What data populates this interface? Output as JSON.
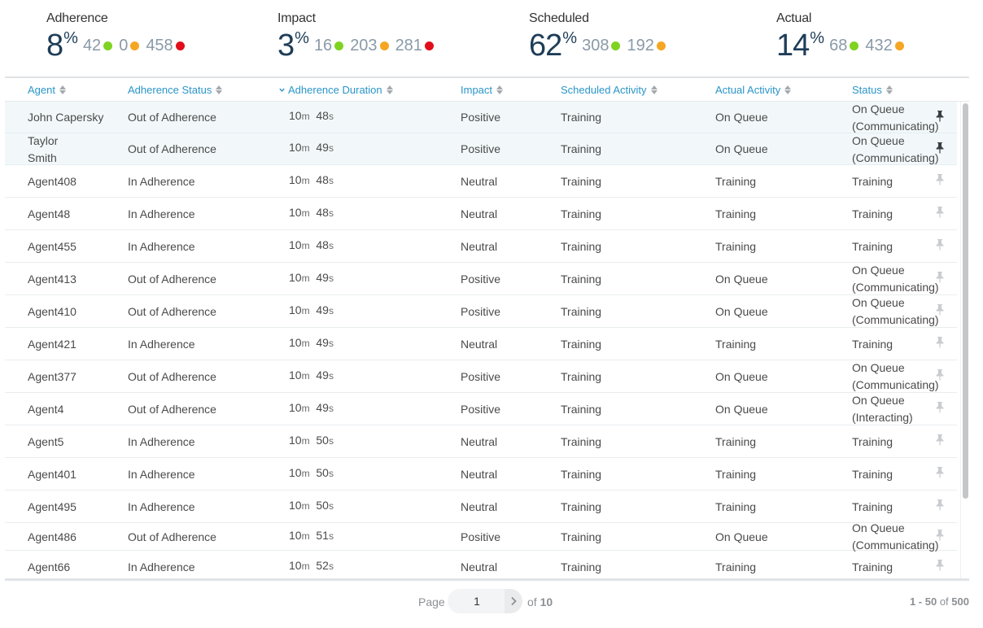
{
  "colors": {
    "green": "#7ed321",
    "orange": "#f5a623",
    "red": "#e10d1a",
    "header_link": "#2b95c8",
    "metric_pct": "#1e3d57"
  },
  "metrics": [
    {
      "title": "Adherence",
      "pct": "8",
      "pct_sign": "%",
      "counts": [
        {
          "value": "42",
          "color": "green"
        },
        {
          "value": "0",
          "color": "orange"
        },
        {
          "value": "458",
          "color": "red"
        }
      ]
    },
    {
      "title": "Impact",
      "pct": "3",
      "pct_sign": "%",
      "counts": [
        {
          "value": "16",
          "color": "green"
        },
        {
          "value": "203",
          "color": "orange"
        },
        {
          "value": "281",
          "color": "red"
        }
      ]
    },
    {
      "title": "Scheduled",
      "pct": "62",
      "pct_sign": "%",
      "counts": [
        {
          "value": "308",
          "color": "green"
        },
        {
          "value": "192",
          "color": "orange"
        }
      ]
    },
    {
      "title": "Actual",
      "pct": "14",
      "pct_sign": "%",
      "counts": [
        {
          "value": "68",
          "color": "green"
        },
        {
          "value": "432",
          "color": "orange"
        }
      ]
    }
  ],
  "table": {
    "columns": [
      {
        "key": "agent",
        "label": "Agent"
      },
      {
        "key": "adherence_status",
        "label": "Adherence Status"
      },
      {
        "key": "adherence_duration",
        "label": "Adherence Duration",
        "sorted": "desc"
      },
      {
        "key": "impact",
        "label": "Impact"
      },
      {
        "key": "scheduled_activity",
        "label": "Scheduled Activity"
      },
      {
        "key": "actual_activity",
        "label": "Actual Activity"
      },
      {
        "key": "status",
        "label": "Status"
      }
    ],
    "duration_units": {
      "minutes": "m",
      "seconds": "s"
    },
    "rows": [
      {
        "pinned": true,
        "agent": [
          "John Capersky"
        ],
        "adherence_status": "Out of Adherence",
        "min": "10",
        "sec": "48",
        "impact": "Positive",
        "scheduled": "Training",
        "actual": "On Queue",
        "status": [
          "On Queue",
          "(Communicating)"
        ]
      },
      {
        "pinned": true,
        "agent": [
          "Taylor",
          "Smith"
        ],
        "adherence_status": "Out of Adherence",
        "min": "10",
        "sec": "49",
        "impact": "Positive",
        "scheduled": "Training",
        "actual": "On Queue",
        "status": [
          "On Queue",
          "(Communicating)"
        ]
      },
      {
        "pinned": false,
        "agent": [
          "Agent408"
        ],
        "adherence_status": "In Adherence",
        "min": "10",
        "sec": "48",
        "impact": "Neutral",
        "scheduled": "Training",
        "actual": "Training",
        "status": [
          "Training"
        ]
      },
      {
        "pinned": false,
        "agent": [
          "Agent48"
        ],
        "adherence_status": "In Adherence",
        "min": "10",
        "sec": "48",
        "impact": "Neutral",
        "scheduled": "Training",
        "actual": "Training",
        "status": [
          "Training"
        ]
      },
      {
        "pinned": false,
        "agent": [
          "Agent455"
        ],
        "adherence_status": "In Adherence",
        "min": "10",
        "sec": "48",
        "impact": "Neutral",
        "scheduled": "Training",
        "actual": "Training",
        "status": [
          "Training"
        ]
      },
      {
        "pinned": false,
        "agent": [
          "Agent413"
        ],
        "adherence_status": "Out of Adherence",
        "min": "10",
        "sec": "49",
        "impact": "Positive",
        "scheduled": "Training",
        "actual": "On Queue",
        "status": [
          "On Queue",
          "(Communicating)"
        ]
      },
      {
        "pinned": false,
        "agent": [
          "Agent410"
        ],
        "adherence_status": "Out of Adherence",
        "min": "10",
        "sec": "49",
        "impact": "Positive",
        "scheduled": "Training",
        "actual": "On Queue",
        "status": [
          "On Queue",
          "(Communicating)"
        ]
      },
      {
        "pinned": false,
        "agent": [
          "Agent421"
        ],
        "adherence_status": "In Adherence",
        "min": "10",
        "sec": "49",
        "impact": "Neutral",
        "scheduled": "Training",
        "actual": "Training",
        "status": [
          "Training"
        ]
      },
      {
        "pinned": false,
        "agent": [
          "Agent377"
        ],
        "adherence_status": "Out of Adherence",
        "min": "10",
        "sec": "49",
        "impact": "Positive",
        "scheduled": "Training",
        "actual": "On Queue",
        "status": [
          "On Queue",
          "(Communicating)"
        ]
      },
      {
        "pinned": false,
        "agent": [
          "Agent4"
        ],
        "adherence_status": "Out of Adherence",
        "min": "10",
        "sec": "49",
        "impact": "Positive",
        "scheduled": "Training",
        "actual": "On Queue",
        "status": [
          "On Queue",
          "(Interacting)"
        ]
      },
      {
        "pinned": false,
        "agent": [
          "Agent5"
        ],
        "adherence_status": "In Adherence",
        "min": "10",
        "sec": "50",
        "impact": "Neutral",
        "scheduled": "Training",
        "actual": "Training",
        "status": [
          "Training"
        ]
      },
      {
        "pinned": false,
        "agent": [
          "Agent401"
        ],
        "adherence_status": "In Adherence",
        "min": "10",
        "sec": "50",
        "impact": "Neutral",
        "scheduled": "Training",
        "actual": "Training",
        "status": [
          "Training"
        ]
      },
      {
        "pinned": false,
        "agent": [
          "Agent495"
        ],
        "adherence_status": "In Adherence",
        "min": "10",
        "sec": "50",
        "impact": "Neutral",
        "scheduled": "Training",
        "actual": "Training",
        "status": [
          "Training"
        ]
      },
      {
        "pinned": false,
        "agent": [
          "Agent486"
        ],
        "adherence_status": "Out of Adherence",
        "min": "10",
        "sec": "51",
        "impact": "Positive",
        "scheduled": "Training",
        "actual": "On Queue",
        "status": [
          "On Queue",
          "(Communicating)"
        ]
      },
      {
        "pinned": false,
        "agent": [
          "Agent66"
        ],
        "adherence_status": "In Adherence",
        "min": "10",
        "sec": "52",
        "impact": "Neutral",
        "scheduled": "Training",
        "actual": "Training",
        "status": [
          "Training"
        ]
      }
    ]
  },
  "pagination": {
    "page_label": "Page",
    "current_page": "1",
    "of_label": "of",
    "total_pages": "10",
    "range_text": "1 - 50",
    "range_of": "of",
    "total_items": "500"
  }
}
